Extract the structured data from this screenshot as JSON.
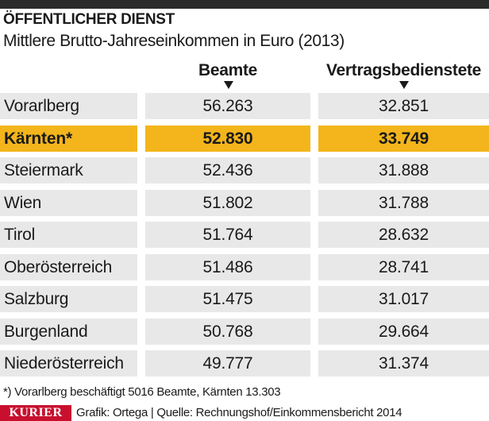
{
  "header": {
    "title": "ÖFFENTLICHER DIENST",
    "subtitle": "Mittlere Brutto-Jahreseinkommen in Euro (2013)"
  },
  "chart_data": {
    "type": "table",
    "title": "ÖFFENTLICHER DIENST",
    "subtitle": "Mittlere Brutto-Jahreseinkommen in Euro (2013)",
    "columns": [
      "Beamte",
      "Vertragsbedienstete"
    ],
    "rows": [
      {
        "name": "Vorarlberg",
        "values": [
          "56.263",
          "32.851"
        ],
        "highlight": false
      },
      {
        "name": "Kärnten*",
        "values": [
          "52.830",
          "33.749"
        ],
        "highlight": true
      },
      {
        "name": "Steiermark",
        "values": [
          "52.436",
          "31.888"
        ],
        "highlight": false
      },
      {
        "name": "Wien",
        "values": [
          "51.802",
          "31.788"
        ],
        "highlight": false
      },
      {
        "name": "Tirol",
        "values": [
          "51.764",
          "28.632"
        ],
        "highlight": false
      },
      {
        "name": "Oberösterreich",
        "values": [
          "51.486",
          "28.741"
        ],
        "highlight": false
      },
      {
        "name": "Salzburg",
        "values": [
          "51.475",
          "31.017"
        ],
        "highlight": false
      },
      {
        "name": "Burgenland",
        "values": [
          "50.768",
          "29.664"
        ],
        "highlight": false
      },
      {
        "name": "Niederösterreich",
        "values": [
          "49.777",
          "31.374"
        ],
        "highlight": false
      }
    ],
    "colors": {
      "highlight": "#f3b51b",
      "row": "#e8e8e8",
      "topbar": "#2b2b2b",
      "brand": "#c8102e"
    }
  },
  "footer": {
    "footnote": "*) Vorarlberg beschäftigt 5016 Beamte, Kärnten 13.303",
    "logo": "KURIER",
    "source": "Grafik: Ortega | Quelle: Rechnungshof/Einkommensbericht 2014"
  }
}
